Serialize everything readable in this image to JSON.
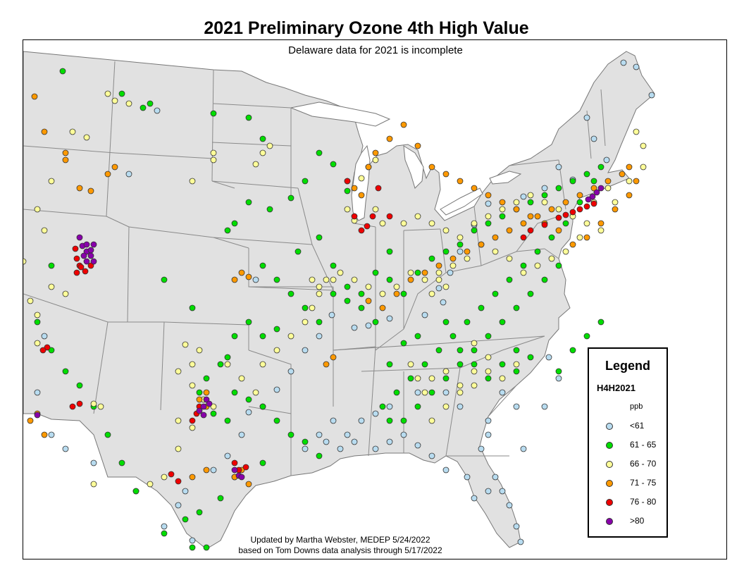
{
  "title": "2021 Preliminary Ozone 4th High Value",
  "subtitle": "Delaware data for 2021 is incomplete",
  "credits": {
    "line1": "Updated by Martha Webster, MEDEP 5/24/2022",
    "line2": "based on Tom Downs data analysis through 5/17/2022"
  },
  "legend": {
    "title": "Legend",
    "field": "H4H2021",
    "unit": "ppb",
    "items": [
      {
        "label": "<61",
        "color": "#b8dcf0"
      },
      {
        "label": "61 - 65",
        "color": "#00dd00"
      },
      {
        "label": "66 - 70",
        "color": "#ffff99"
      },
      {
        "label": "71 - 75",
        "color": "#ff9900"
      },
      {
        "label": "76 - 80",
        "color": "#ee0000"
      },
      {
        "label": ">80",
        "color": "#8800aa"
      }
    ]
  },
  "colors": {
    "land": "#e1e1e1",
    "state_border": "#8a8a8a",
    "water": "#ffffff"
  }
}
